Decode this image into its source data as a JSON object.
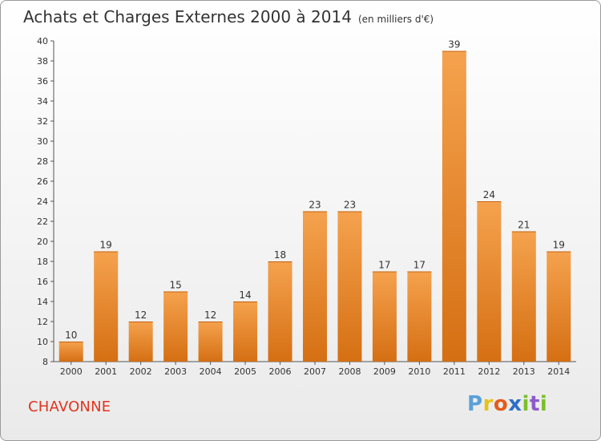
{
  "title": "Achats et Charges Externes 2000 à 2014",
  "subtitle": "(en milliers d'€)",
  "commune": "CHAVONNE",
  "logo": {
    "letters": [
      "P",
      "r",
      "o",
      "x",
      "i",
      "t",
      "i"
    ],
    "colors": [
      "#5aa0d8",
      "#e8c21a",
      "#e35b1d",
      "#2e6ec7",
      "#7bbf2b",
      "#8b5cc7",
      "#7bbf2b"
    ]
  },
  "colors": {
    "bar_fill_top": "#f5a24e",
    "bar_fill_bottom": "#d56f13",
    "commune": "#e0351f"
  },
  "chart_data": {
    "type": "bar",
    "categories": [
      "2000",
      "2001",
      "2002",
      "2003",
      "2004",
      "2005",
      "2006",
      "2007",
      "2008",
      "2009",
      "2010",
      "2011",
      "2012",
      "2013",
      "2014"
    ],
    "values": [
      10,
      19,
      12,
      15,
      12,
      14,
      18,
      23,
      23,
      17,
      17,
      39,
      24,
      21,
      19
    ],
    "ylim": [
      8,
      40
    ],
    "yticks": [
      8,
      10,
      12,
      14,
      16,
      18,
      20,
      22,
      24,
      26,
      28,
      30,
      32,
      34,
      36,
      38,
      40
    ],
    "grid": false,
    "data_labels": true
  }
}
